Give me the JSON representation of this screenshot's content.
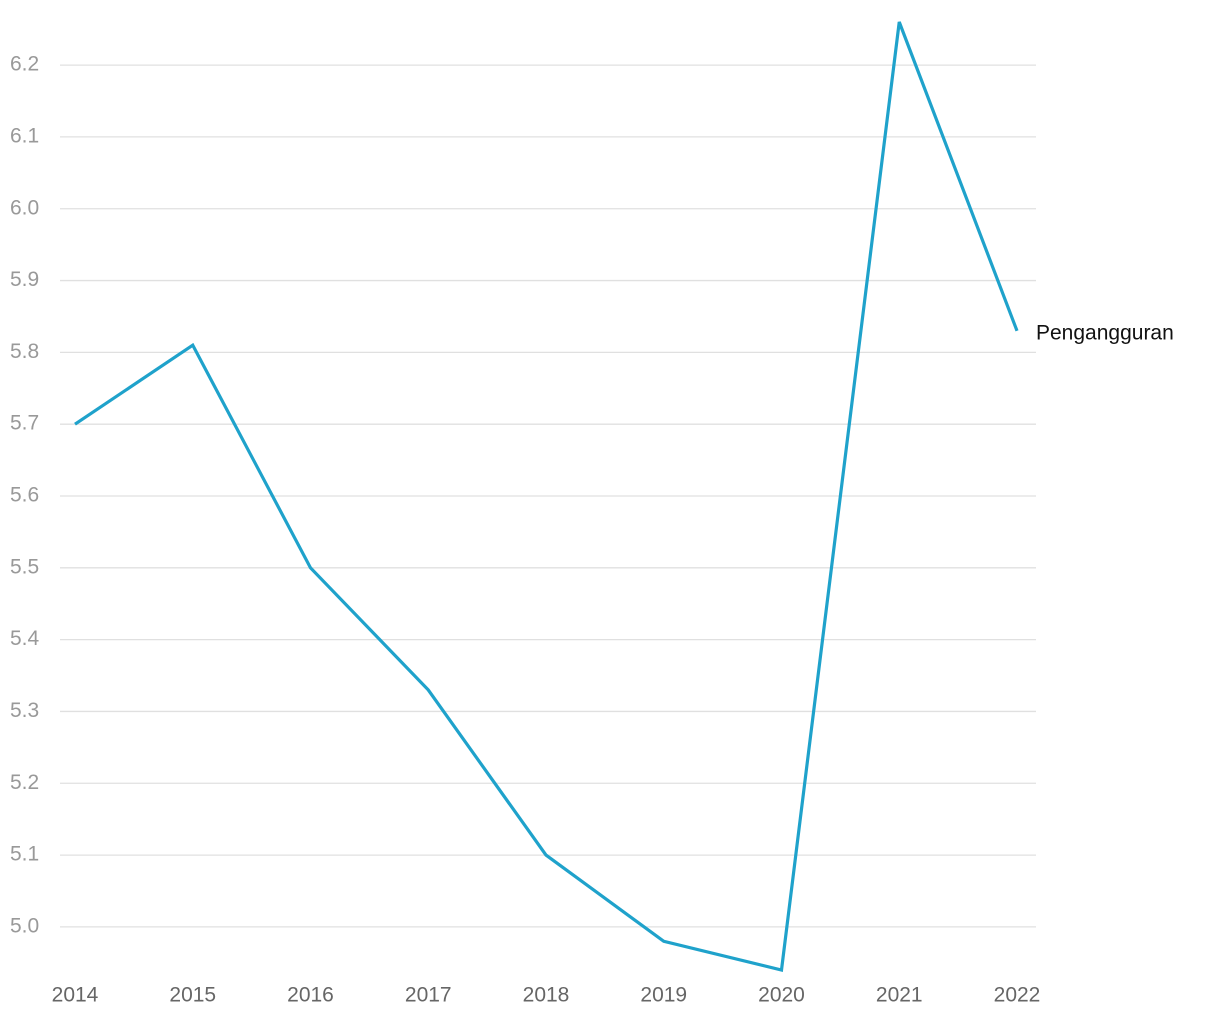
{
  "chart_data": {
    "type": "line",
    "categories": [
      "2014",
      "2015",
      "2016",
      "2017",
      "2018",
      "2019",
      "2020",
      "2021",
      "2022"
    ],
    "series": [
      {
        "name": "Pengangguran",
        "color": "#1fa2cb",
        "values": [
          5.7,
          5.81,
          5.5,
          5.33,
          5.1,
          4.98,
          4.94,
          6.26,
          5.83
        ]
      }
    ],
    "ylim": [
      4.94,
      6.26
    ],
    "yticks": [
      {
        "value": 5,
        "label": "5.0"
      },
      5.1,
      5.2,
      5.3,
      5.4,
      5.5,
      5.6,
      5.7,
      5.8,
      5.9,
      {
        "value": 6,
        "label": "6.0"
      },
      6.1,
      6.2
    ],
    "grid": true
  }
}
